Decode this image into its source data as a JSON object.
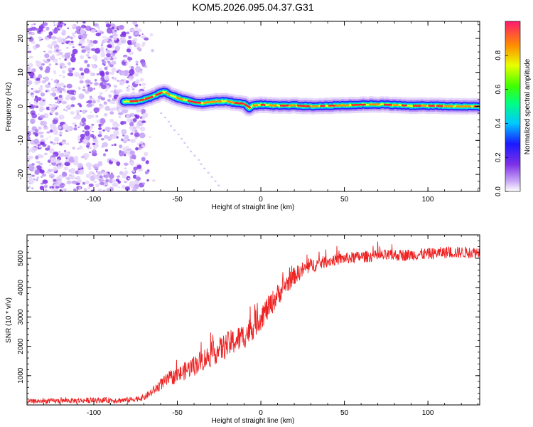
{
  "title": "KOM5.2026.095.04.37.G31",
  "colors": {
    "snr_line": "#ee2222",
    "noise_purple": "#8a2be2",
    "frame": "#000000"
  },
  "chart_data": [
    {
      "type": "heatmap",
      "name": "spectrogram",
      "xlabel": "Height of straight line (km)",
      "ylabel": "Frequency (Hz)",
      "xlim": [
        -140,
        131
      ],
      "ylim": [
        -25,
        25
      ],
      "xticks": [
        -100,
        -50,
        0,
        50,
        100
      ],
      "yticks": [
        -20,
        -10,
        0,
        10,
        20
      ],
      "xtick_labels": [
        "-100",
        "-50",
        "0",
        "50",
        "100"
      ],
      "ytick_labels": [
        "-20",
        "-10",
        "0",
        "10",
        "20"
      ],
      "noise_region_x": [
        -140,
        -70
      ],
      "signal_trace": {
        "x": [
          -82,
          -75,
          -70,
          -65,
          -60,
          -57,
          -55,
          -50,
          -45,
          -40,
          -35,
          -30,
          -25,
          -20,
          -15,
          -10,
          -7,
          -5,
          0,
          10,
          20,
          30,
          40,
          50,
          60,
          70,
          80,
          90,
          100,
          110,
          120,
          131
        ],
        "freq": [
          1.5,
          1.5,
          2.0,
          2.8,
          4.0,
          4.2,
          3.5,
          2.5,
          1.8,
          1.2,
          1.0,
          1.3,
          1.5,
          1.5,
          1.0,
          0.8,
          -0.5,
          0.2,
          0.5,
          0.2,
          0.3,
          0.0,
          0.2,
          0.3,
          0.5,
          0.6,
          0.4,
          0.2,
          0.2,
          0.1,
          0.0,
          0.0
        ]
      },
      "colorbar": {
        "label": "Normalized spectral amplitude",
        "range": [
          0,
          1
        ],
        "ticks": [
          0.0,
          0.2,
          0.4,
          0.6,
          0.8
        ],
        "tick_labels": [
          "0.0",
          "0.2",
          "0.4",
          "0.6",
          "0.8"
        ]
      }
    },
    {
      "type": "line",
      "name": "snr",
      "xlabel": "Height of straight line (km)",
      "ylabel": "SNR (10 * v/v)",
      "xlim": [
        -140,
        131
      ],
      "ylim": [
        0,
        5800
      ],
      "xticks": [
        -100,
        -50,
        0,
        50,
        100
      ],
      "yticks": [
        1000,
        2000,
        3000,
        4000,
        5000
      ],
      "xtick_labels": [
        "-100",
        "-50",
        "0",
        "50",
        "100"
      ],
      "ytick_labels": [
        "1000",
        "2000",
        "3000",
        "4000",
        "5000"
      ],
      "trend": {
        "x": [
          -140,
          -100,
          -80,
          -70,
          -65,
          -60,
          -55,
          -50,
          -40,
          -30,
          -20,
          -10,
          -5,
          0,
          5,
          10,
          15,
          20,
          25,
          30,
          40,
          50,
          60,
          70,
          80,
          90,
          100,
          110,
          120,
          131
        ],
        "y": [
          120,
          160,
          160,
          250,
          450,
          700,
          900,
          1000,
          1350,
          1700,
          2050,
          2350,
          2650,
          3000,
          3350,
          3750,
          4100,
          4400,
          4600,
          4750,
          4900,
          5000,
          5050,
          5080,
          5100,
          5120,
          5150,
          5200,
          5200,
          5200
        ]
      },
      "noise_amplitude": {
        "x": [
          -140,
          -70,
          -60,
          -40,
          -20,
          0,
          20,
          40,
          100,
          131
        ],
        "y": [
          80,
          100,
          200,
          350,
          450,
          450,
          300,
          200,
          200,
          200
        ]
      }
    }
  ]
}
